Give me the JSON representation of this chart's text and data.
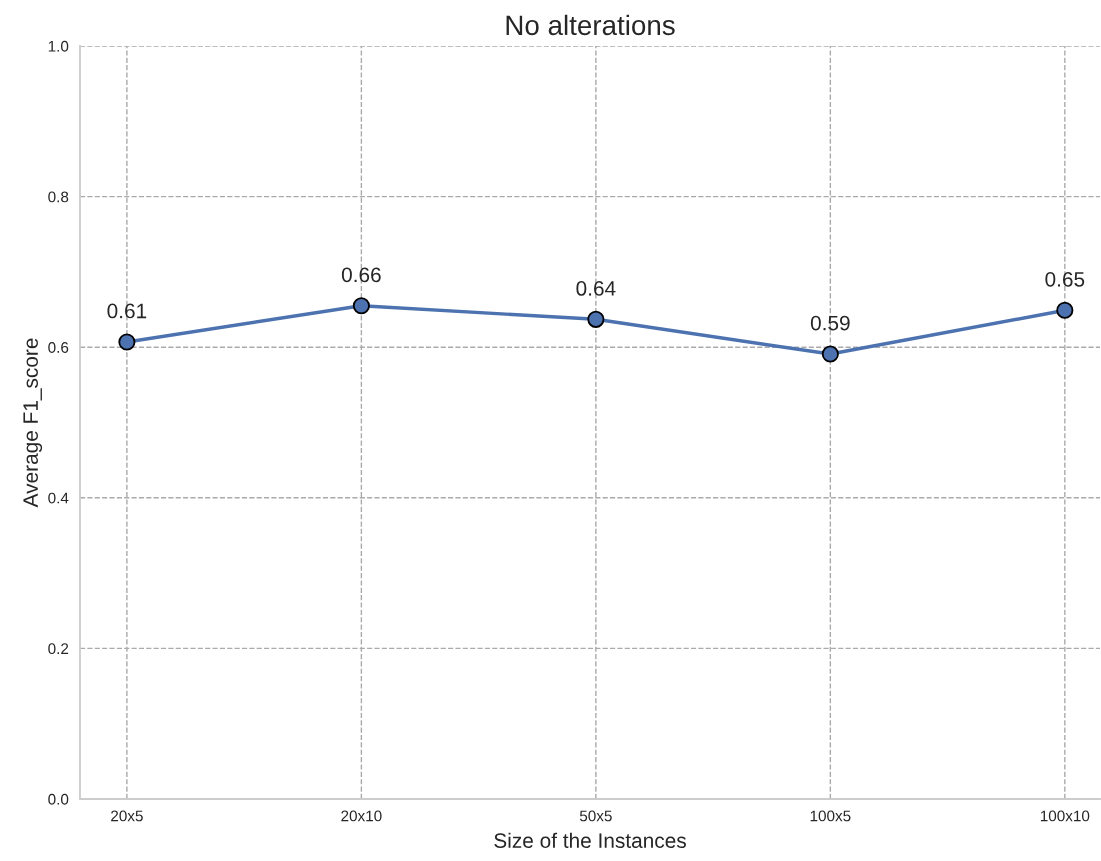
{
  "chart_data": {
    "type": "line",
    "title": "No alterations",
    "xlabel": "Size of the Instances",
    "ylabel": "Average F1_score",
    "categories": [
      "20x5",
      "20x10",
      "50x5",
      "100x5",
      "100x10"
    ],
    "series": [
      {
        "color": "#4c72b0",
        "values": [
          0.607,
          0.655,
          0.637,
          0.591,
          0.649
        ],
        "value_labels": [
          "0.61",
          "0.66",
          "0.64",
          "0.59",
          "0.65"
        ]
      }
    ],
    "ylim": [
      0.0,
      1.0
    ],
    "yticks": [
      "0.0",
      "0.2",
      "0.4",
      "0.6",
      "0.8",
      "1.0"
    ],
    "grid": true,
    "marker": "circle",
    "line_style": "solid"
  }
}
